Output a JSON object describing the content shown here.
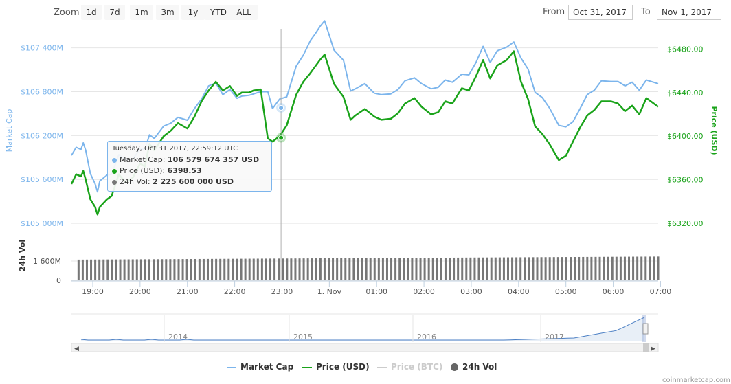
{
  "toolbar": {
    "zoom_label": "Zoom",
    "zoom_buttons": [
      "1d",
      "7d",
      "1m",
      "3m",
      "1y",
      "YTD",
      "ALL"
    ],
    "from_label": "From",
    "from_value": "Oct 31, 2017",
    "to_label": "To",
    "to_value": "Nov 1, 2017"
  },
  "tooltip": {
    "title": "Tuesday, Oct 31 2017, 22:59:12 UTC",
    "rows": [
      {
        "label": "Market Cap: ",
        "value": "106 579 674 357 USD",
        "color": "#7cb5ec"
      },
      {
        "label": "Price (USD): ",
        "value": "6398.53",
        "color": "#1aa31a"
      },
      {
        "label": "24h Vol: ",
        "value": "2 225 600 000 USD",
        "color": "#777777"
      }
    ]
  },
  "legend": [
    {
      "label": "Market Cap",
      "color": "#7cb5ec",
      "kind": "line"
    },
    {
      "label": "Price (USD)",
      "color": "#1aa31a",
      "kind": "line"
    },
    {
      "label": "Price (BTC)",
      "color": "#cccccc",
      "kind": "line",
      "disabled": true
    },
    {
      "label": "24h Vol",
      "color": "#666666",
      "kind": "dot"
    }
  ],
  "credit": "coinmarketcap.com",
  "chart_data": {
    "type": "line",
    "x_tick_labels": [
      "19:00",
      "20:00",
      "21:00",
      "22:00",
      "23:00",
      "1. Nov",
      "01:00",
      "02:00",
      "03:00",
      "04:00",
      "05:00",
      "06:00",
      "07:00"
    ],
    "x_ticks_hours": [
      19,
      20,
      21,
      22,
      23,
      24,
      25,
      26,
      27,
      28,
      29,
      30,
      31
    ],
    "x_range_hours": [
      18.55,
      30.95
    ],
    "left_axis": {
      "title": "Market Cap",
      "color": "#7cb5ec",
      "ticks": [
        "$105 000M",
        "$105 600M",
        "$106 200M",
        "$106 800M",
        "$107 400M"
      ],
      "tick_values": [
        105000,
        105600,
        106200,
        106800,
        107400
      ],
      "range": [
        104860,
        107660
      ]
    },
    "right_axis": {
      "title": "Price (USD)",
      "color": "#1aa31a",
      "ticks": [
        "$6320.00",
        "$6360.00",
        "$6400.00",
        "$6440.00",
        "$6480.00"
      ],
      "tick_values": [
        6320,
        6360,
        6400,
        6440,
        6480
      ],
      "range": [
        6310.5,
        6498.6
      ]
    },
    "volume_axis": {
      "title": "24h Vol",
      "ticks": [
        "0",
        "1 600M"
      ],
      "tick_values": [
        0,
        1600
      ],
      "range": [
        0,
        3600
      ]
    },
    "series": [
      {
        "name": "Market Cap",
        "color": "#7cb5ec",
        "axis": "left",
        "x": [
          18.55,
          18.65,
          18.75,
          18.8,
          18.85,
          18.95,
          19.05,
          19.1,
          19.15,
          19.3,
          19.4,
          19.55,
          19.7,
          19.85,
          20.0,
          20.1,
          20.2,
          20.3,
          20.5,
          20.65,
          20.8,
          21.0,
          21.15,
          21.3,
          21.45,
          21.6,
          21.75,
          21.9,
          22.05,
          22.15,
          22.3,
          22.4,
          22.55,
          22.7,
          22.8,
          22.95,
          23.1,
          23.3,
          23.45,
          23.6,
          23.7,
          23.8,
          23.9,
          24.1,
          24.3,
          24.45,
          24.55,
          24.75,
          24.95,
          25.1,
          25.3,
          25.45,
          25.6,
          25.8,
          25.95,
          26.15,
          26.3,
          26.45,
          26.6,
          26.8,
          26.95,
          27.1,
          27.25,
          27.4,
          27.55,
          27.75,
          27.9,
          28.05,
          28.2,
          28.35,
          28.5,
          28.65,
          28.85,
          29.0,
          29.15,
          29.3,
          29.45,
          29.6,
          29.75,
          29.95,
          30.1,
          30.25,
          30.4,
          30.55,
          30.7,
          30.95
        ],
        "values": [
          105930,
          106040,
          106010,
          106100,
          106000,
          105680,
          105540,
          105430,
          105580,
          105660,
          105670,
          105940,
          105870,
          105880,
          106020,
          106010,
          106210,
          106160,
          106330,
          106370,
          106450,
          106410,
          106570,
          106700,
          106880,
          106920,
          106760,
          106830,
          106710,
          106740,
          106750,
          106770,
          106800,
          106800,
          106570,
          106700,
          106730,
          107150,
          107300,
          107500,
          107590,
          107690,
          107770,
          107370,
          107230,
          106810,
          106840,
          106910,
          106780,
          106760,
          106770,
          106830,
          106950,
          106990,
          106910,
          106840,
          106860,
          106960,
          106930,
          107040,
          107030,
          107200,
          107420,
          107200,
          107360,
          107410,
          107480,
          107260,
          107110,
          106790,
          106720,
          106580,
          106340,
          106320,
          106390,
          106570,
          106760,
          106820,
          106950,
          106940,
          106940,
          106880,
          106930,
          106820,
          106960,
          106910
        ]
      },
      {
        "name": "Price (USD)",
        "color": "#1aa31a",
        "axis": "right",
        "x": [
          18.55,
          18.65,
          18.75,
          18.8,
          18.85,
          18.95,
          19.05,
          19.1,
          19.15,
          19.3,
          19.4,
          19.55,
          19.7,
          19.85,
          20.0,
          20.1,
          20.2,
          20.3,
          20.5,
          20.65,
          20.8,
          21.0,
          21.15,
          21.3,
          21.45,
          21.6,
          21.75,
          21.9,
          22.05,
          22.15,
          22.3,
          22.4,
          22.55,
          22.7,
          22.8,
          22.95,
          23.1,
          23.3,
          23.45,
          23.6,
          23.7,
          23.8,
          23.9,
          24.1,
          24.3,
          24.45,
          24.55,
          24.75,
          24.95,
          25.1,
          25.3,
          25.45,
          25.6,
          25.8,
          25.95,
          26.15,
          26.3,
          26.45,
          26.6,
          26.8,
          26.95,
          27.1,
          27.25,
          27.4,
          27.55,
          27.75,
          27.9,
          28.05,
          28.2,
          28.35,
          28.5,
          28.65,
          28.85,
          29.0,
          29.15,
          29.3,
          29.45,
          29.6,
          29.75,
          29.95,
          30.1,
          30.25,
          30.4,
          30.55,
          30.7,
          30.95
        ],
        "values": [
          6356,
          6365,
          6363,
          6368,
          6360,
          6342,
          6335,
          6328,
          6335,
          6342,
          6345,
          6365,
          6357,
          6362,
          6375,
          6372,
          6393,
          6387,
          6400,
          6405,
          6412,
          6407,
          6418,
          6432,
          6442,
          6450,
          6442,
          6446,
          6437,
          6440,
          6440,
          6442,
          6443,
          6398,
          6395,
          6400,
          6410,
          6438,
          6450,
          6458,
          6464,
          6470,
          6475,
          6448,
          6436,
          6415,
          6419,
          6425,
          6418,
          6415,
          6416,
          6421,
          6430,
          6435,
          6427,
          6420,
          6422,
          6432,
          6430,
          6444,
          6442,
          6455,
          6470,
          6453,
          6465,
          6470,
          6478,
          6450,
          6434,
          6409,
          6402,
          6393,
          6378,
          6382,
          6395,
          6408,
          6419,
          6424,
          6432,
          6432,
          6430,
          6423,
          6428,
          6420,
          6435,
          6427
        ]
      },
      {
        "name": "24h Vol",
        "color": "#777777",
        "axis": "volume",
        "x_start": 18.7,
        "x_end": 30.95,
        "count": 140,
        "values_start": 1720,
        "values_end": 1980
      }
    ]
  },
  "navigator": {
    "year_labels": [
      "2014",
      "2015",
      "2016",
      "2017"
    ]
  }
}
